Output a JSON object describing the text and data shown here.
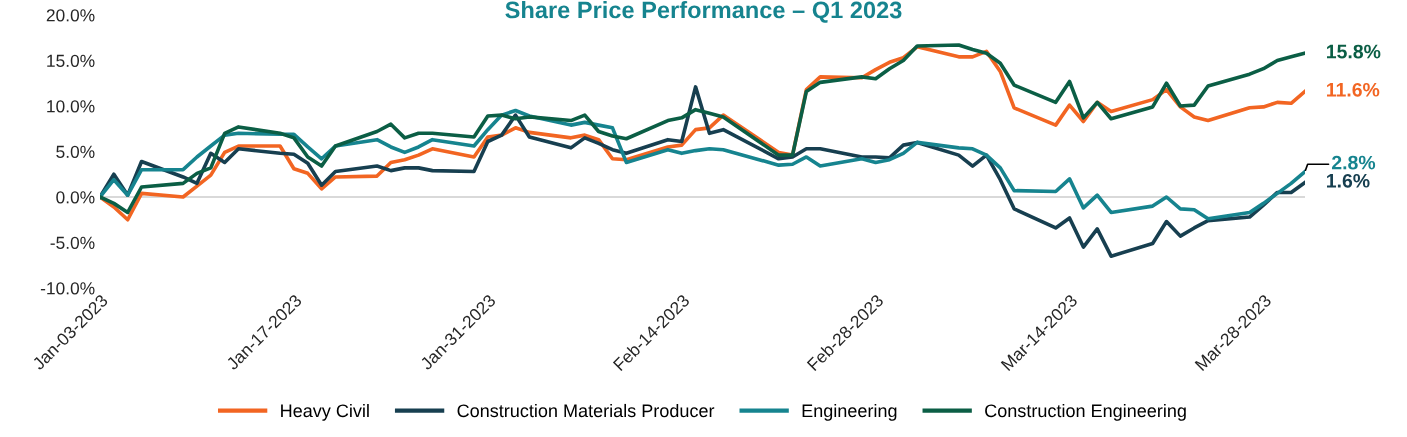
{
  "chart_data": {
    "type": "line",
    "title": "Share Price Performance – Q1 2023",
    "x": [
      "2023-01-03",
      "2023-01-04",
      "2023-01-05",
      "2023-01-06",
      "2023-01-09",
      "2023-01-10",
      "2023-01-11",
      "2023-01-12",
      "2023-01-13",
      "2023-01-16",
      "2023-01-17",
      "2023-01-18",
      "2023-01-19",
      "2023-01-20",
      "2023-01-23",
      "2023-01-24",
      "2023-01-25",
      "2023-01-26",
      "2023-01-27",
      "2023-01-30",
      "2023-01-31",
      "2023-02-01",
      "2023-02-02",
      "2023-02-03",
      "2023-02-06",
      "2023-02-07",
      "2023-02-08",
      "2023-02-09",
      "2023-02-10",
      "2023-02-13",
      "2023-02-14",
      "2023-02-15",
      "2023-02-16",
      "2023-02-17",
      "2023-02-21",
      "2023-02-22",
      "2023-02-23",
      "2023-02-24",
      "2023-02-27",
      "2023-02-28",
      "2023-03-01",
      "2023-03-02",
      "2023-03-03",
      "2023-03-06",
      "2023-03-07",
      "2023-03-08",
      "2023-03-09",
      "2023-03-10",
      "2023-03-13",
      "2023-03-14",
      "2023-03-15",
      "2023-03-16",
      "2023-03-17",
      "2023-03-20",
      "2023-03-21",
      "2023-03-22",
      "2023-03-23",
      "2023-03-24",
      "2023-03-27",
      "2023-03-28",
      "2023-03-29",
      "2023-03-30",
      "2023-03-31"
    ],
    "series": [
      {
        "name": "Heavy Civil",
        "color": "#f26522",
        "values": [
          0,
          -1.1,
          -2.5,
          0.4,
          0.0,
          1.2,
          2.4,
          4.9,
          5.6,
          5.6,
          3.1,
          2.6,
          0.9,
          2.2,
          2.3,
          3.8,
          4.1,
          4.6,
          5.3,
          4.4,
          6.6,
          6.8,
          7.6,
          7.1,
          6.5,
          6.8,
          6.3,
          4.2,
          4.1,
          5.5,
          5.7,
          7.4,
          7.6,
          9.0,
          4.9,
          4.6,
          11.8,
          13.2,
          13.1,
          14.0,
          14.8,
          15.3,
          16.5,
          15.4,
          15.4,
          16.0,
          13.8,
          9.8,
          7.9,
          10.1,
          8.3,
          10.4,
          9.4,
          10.7,
          11.8,
          9.9,
          8.8,
          8.4,
          9.8,
          9.9,
          10.4,
          10.3,
          11.6
        ],
        "value_labels": [
          null,
          null,
          null,
          null,
          null,
          null,
          null,
          null,
          null,
          null,
          null,
          null,
          null,
          null,
          null,
          null,
          null,
          null,
          null,
          null,
          null,
          null,
          null,
          null,
          null,
          null,
          null,
          null,
          null,
          null,
          null,
          null,
          null,
          null,
          null,
          null,
          null,
          null,
          null,
          null,
          null,
          null,
          null,
          null,
          null,
          null,
          null,
          null,
          null,
          null,
          null,
          null,
          null,
          null,
          null,
          null,
          null,
          null,
          null,
          null,
          null,
          null,
          "11.6%"
        ]
      },
      {
        "name": "Construction Materials Producer",
        "color": "#173f50",
        "values": [
          0,
          2.5,
          0.2,
          3.9,
          2.2,
          1.5,
          4.8,
          3.8,
          5.3,
          4.8,
          4.7,
          3.7,
          1.3,
          2.8,
          3.4,
          2.9,
          3.2,
          3.2,
          2.9,
          2.8,
          6.1,
          6.8,
          9.0,
          6.6,
          5.4,
          6.5,
          5.9,
          5.2,
          4.8,
          6.3,
          6.1,
          12.1,
          7.0,
          7.4,
          4.2,
          4.4,
          5.3,
          5.3,
          4.4,
          4.4,
          4.3,
          5.7,
          6.0,
          4.6,
          3.4,
          4.6,
          1.9,
          -1.3,
          -3.4,
          -2.3,
          -5.5,
          -3.5,
          -6.5,
          -5.1,
          -2.7,
          -4.3,
          -3.4,
          -2.6,
          -2.2,
          -0.9,
          0.5,
          0.5,
          1.6
        ],
        "value_labels": [
          null,
          null,
          null,
          null,
          null,
          null,
          null,
          null,
          null,
          null,
          null,
          null,
          null,
          null,
          null,
          null,
          null,
          null,
          null,
          null,
          null,
          null,
          null,
          null,
          null,
          null,
          null,
          null,
          null,
          null,
          null,
          null,
          null,
          null,
          null,
          null,
          null,
          null,
          null,
          null,
          null,
          null,
          null,
          null,
          null,
          null,
          null,
          null,
          null,
          null,
          null,
          null,
          null,
          null,
          null,
          null,
          null,
          null,
          null,
          null,
          null,
          null,
          "1.6%"
        ]
      },
      {
        "name": "Engineering",
        "color": "#16848f",
        "values": [
          0,
          1.9,
          0.2,
          3.0,
          3.0,
          4.4,
          5.6,
          6.8,
          7.0,
          6.9,
          6.9,
          5.5,
          4.2,
          5.6,
          6.3,
          5.5,
          4.9,
          5.5,
          6.3,
          5.6,
          7.4,
          9.0,
          9.5,
          8.9,
          7.9,
          8.2,
          7.9,
          7.6,
          3.8,
          5.2,
          4.8,
          5.1,
          5.3,
          5.2,
          3.5,
          3.6,
          4.4,
          3.4,
          4.2,
          3.8,
          4.1,
          4.8,
          6.0,
          5.4,
          5.3,
          4.6,
          3.2,
          0.7,
          0.6,
          2.0,
          -1.2,
          0.2,
          -1.7,
          -1.0,
          0.0,
          -1.3,
          -1.4,
          -2.4,
          -1.7,
          -0.7,
          0.4,
          1.5,
          2.8
        ],
        "value_labels": [
          null,
          null,
          null,
          null,
          null,
          null,
          null,
          null,
          null,
          null,
          null,
          null,
          null,
          null,
          null,
          null,
          null,
          null,
          null,
          null,
          null,
          null,
          null,
          null,
          null,
          null,
          null,
          null,
          null,
          null,
          null,
          null,
          null,
          null,
          null,
          null,
          null,
          null,
          null,
          null,
          null,
          null,
          null,
          null,
          null,
          null,
          null,
          null,
          null,
          null,
          null,
          null,
          null,
          null,
          null,
          null,
          null,
          null,
          null,
          null,
          null,
          null,
          "2.8%"
        ]
      },
      {
        "name": "Construction Engineering",
        "color": "#0b5e45",
        "values": [
          0,
          -0.7,
          -1.7,
          1.1,
          1.5,
          2.6,
          3.2,
          7.0,
          7.7,
          7.0,
          6.5,
          4.4,
          3.4,
          5.6,
          7.2,
          8.0,
          6.5,
          7.0,
          7.0,
          6.6,
          8.9,
          9.0,
          8.6,
          8.8,
          8.4,
          9.0,
          7.2,
          6.7,
          6.4,
          8.4,
          8.7,
          9.6,
          9.2,
          8.8,
          4.6,
          4.6,
          11.6,
          12.6,
          13.2,
          13.0,
          14.1,
          15.0,
          16.6,
          16.7,
          16.2,
          15.8,
          14.7,
          12.3,
          10.4,
          12.7,
          8.7,
          10.4,
          8.6,
          9.9,
          12.5,
          10.0,
          10.1,
          12.2,
          13.5,
          14.1,
          15.0,
          15.4,
          15.8
        ],
        "value_labels": [
          null,
          null,
          null,
          null,
          null,
          null,
          null,
          null,
          null,
          null,
          null,
          null,
          null,
          null,
          null,
          null,
          null,
          null,
          null,
          null,
          null,
          null,
          null,
          null,
          null,
          null,
          null,
          null,
          null,
          null,
          null,
          null,
          null,
          null,
          null,
          null,
          null,
          null,
          null,
          null,
          null,
          null,
          null,
          null,
          null,
          null,
          null,
          null,
          null,
          null,
          null,
          null,
          null,
          null,
          null,
          null,
          null,
          null,
          null,
          null,
          null,
          null,
          "15.8%"
        ]
      }
    ],
    "xlim": [
      "2023-01-03",
      "2023-03-31"
    ],
    "xticks": [
      {
        "value": "2023-01-03",
        "label": "Jan-03-2023"
      },
      {
        "value": "2023-01-17",
        "label": "Jan-17-2023"
      },
      {
        "value": "2023-01-31",
        "label": "Jan-31-2023"
      },
      {
        "value": "2023-02-14",
        "label": "Feb-14-2023"
      },
      {
        "value": "2023-02-28",
        "label": "Feb-28-2023"
      },
      {
        "value": "2023-03-14",
        "label": "Mar-14-2023"
      },
      {
        "value": "2023-03-28",
        "label": "Mar-28-2023"
      }
    ],
    "ylim": [
      -10,
      20
    ],
    "yticks": [
      {
        "value": -10,
        "label": "-10.0%"
      },
      {
        "value": -5,
        "label": "-5.0%"
      },
      {
        "value": 0,
        "label": "0.0%"
      },
      {
        "value": 5,
        "label": "5.0%"
      },
      {
        "value": 10,
        "label": "10.0%"
      },
      {
        "value": 15,
        "label": "15.0%"
      },
      {
        "value": 20,
        "label": "20.0%"
      }
    ],
    "ref_lines": [
      {
        "axis": "y",
        "value": 0,
        "color": "#d9d9d9"
      }
    ],
    "grid": false,
    "legend": "bottom",
    "marker": "none",
    "line_style": "solid"
  }
}
